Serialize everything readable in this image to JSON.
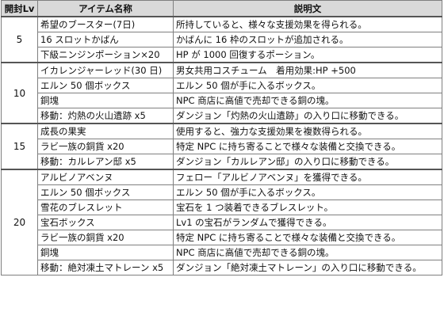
{
  "table": {
    "headers": {
      "level": "開封Lv",
      "item": "アイテム名称",
      "description": "説明文"
    },
    "groups": [
      {
        "level": "5",
        "rows": [
          {
            "item": "希望のブースター(7日)",
            "description": "所持していると、様々な支援効果を得られる。"
          },
          {
            "item": "16 スロットかばん",
            "description": "かばんに 16 枠のスロットが追加される。"
          },
          {
            "item": "下級ニンジンポーション×20",
            "description": "HP が 1000 回復するポーション。"
          }
        ]
      },
      {
        "level": "10",
        "rows": [
          {
            "item": "イカレンジャーレッド(30 日)",
            "description": "男女共用コスチューム　着用効果:HP +500"
          },
          {
            "item": "エルン 50 個ボックス",
            "description": "エルン 50 個が手に入るボックス。"
          },
          {
            "item": "銅塊",
            "description": "NPC 商店に高値で売却できる銅の塊。"
          },
          {
            "item": "移動：灼熱の火山遺跡 x5",
            "description": "ダンジョン「灼熱の火山遺跡」の入り口に移動できる。"
          }
        ]
      },
      {
        "level": "15",
        "rows": [
          {
            "item": "成長の果実",
            "description": "使用すると、強力な支援効果を複数得られる。"
          },
          {
            "item": "ラビ一族の銅貨 x20",
            "description": "特定 NPC に持ち寄ることで様々な装備と交換できる。"
          },
          {
            "item": "移動：カルレアン邸 x5",
            "description": "ダンジョン「カルレアン邸」の入り口に移動できる。"
          }
        ]
      },
      {
        "level": "20",
        "rows": [
          {
            "item": "アルビノアベンヌ",
            "description": "フェロー「アルビノアベンヌ」を獲得できる。"
          },
          {
            "item": "エルン 50 個ボックス",
            "description": "エルン 50 個が手に入るボックス。"
          },
          {
            "item": "雪花のブレスレット",
            "description": "宝石を 1 つ装着できるブレスレット。"
          },
          {
            "item": "宝石ボックス",
            "description": "Lv1 の宝石がランダムで獲得できる。"
          },
          {
            "item": "ラビ一族の銅貨 x20",
            "description": "特定 NPC に持ち寄ることで様々な装備と交換できる。"
          },
          {
            "item": "銅塊",
            "description": "NPC 商店に高値で売却できる銅の塊。"
          },
          {
            "item": "移動：絶対凍土マトレーン x5",
            "description": "ダンジョン「絶対凍土マトレーン」の入り口に移動できる。"
          }
        ]
      }
    ]
  },
  "colors": {
    "header_bg": "#d9d9d9",
    "border": "#7f7f7f",
    "group_border": "#555555",
    "text": "#111111"
  }
}
